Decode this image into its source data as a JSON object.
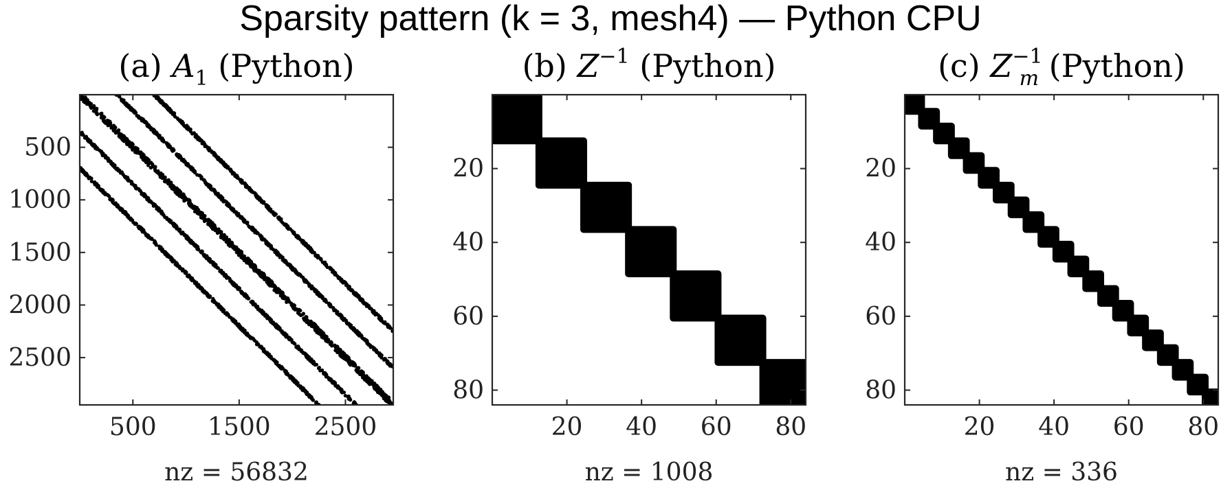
{
  "figure": {
    "suptitle": "Sparsity pattern (k = 3, mesh4) — Python CPU"
  },
  "chart_data": [
    {
      "type": "scatter",
      "subplot": "a",
      "title": {
        "prefix": "(a) ",
        "var": "A",
        "sub": "1",
        "sup": "",
        "suffix": " (Python)"
      },
      "xlabel": "nz = 56832",
      "n": 2950,
      "xlim": [
        0,
        2950
      ],
      "ylim": [
        0,
        2950
      ],
      "xticks": [
        500,
        1500,
        2500
      ],
      "yticks": [
        500,
        1000,
        1500,
        2000,
        2500
      ],
      "pattern": "banded",
      "band_offsets": [
        -700,
        -350,
        0,
        350,
        700
      ]
    },
    {
      "type": "scatter",
      "subplot": "b",
      "title": {
        "prefix": "(b) ",
        "var": "Z",
        "sub": "",
        "sup": "−1",
        "suffix": " (Python)"
      },
      "xlabel": "nz = 1008",
      "n": 84,
      "xlim": [
        0,
        84
      ],
      "ylim": [
        0,
        84
      ],
      "xticks": [
        20,
        40,
        60,
        80
      ],
      "yticks": [
        20,
        40,
        60,
        80
      ],
      "pattern": "block-diagonal",
      "block_size": 12,
      "num_blocks": 7
    },
    {
      "type": "scatter",
      "subplot": "c",
      "title": {
        "prefix": "(c) ",
        "var": "Z",
        "sub": "m",
        "sup": "−1",
        "suffix": " (Python)"
      },
      "xlabel": "nz = 336",
      "n": 84,
      "xlim": [
        0,
        84
      ],
      "ylim": [
        0,
        84
      ],
      "xticks": [
        20,
        40,
        60,
        80
      ],
      "yticks": [
        20,
        40,
        60,
        80
      ],
      "pattern": "block-diagonal",
      "block_size": 4,
      "num_blocks": 21
    }
  ]
}
